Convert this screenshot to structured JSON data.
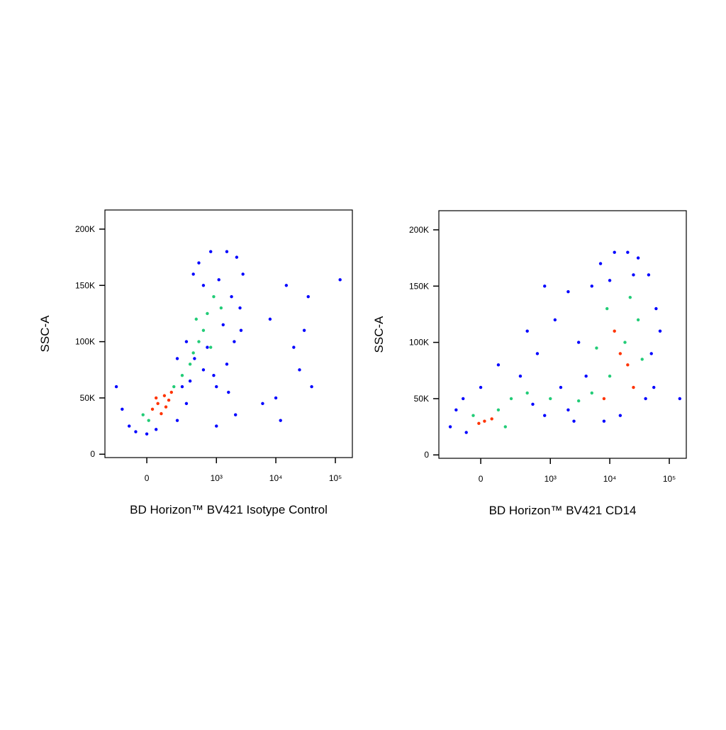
{
  "chart_data": [
    {
      "type": "scatter",
      "xlabel": "BD Horizon™ BV421 Isotype Control",
      "ylabel": "SSC-A",
      "xscale": "biexponential",
      "xlim": [
        -330,
        193000
      ],
      "ylim": [
        -3000,
        217000
      ],
      "xticks": [
        0,
        {
          "value": 1000,
          "label": "10³"
        },
        {
          "value": 10000,
          "label": "10⁴"
        },
        {
          "value": 100000,
          "label": "10⁵"
        }
      ],
      "yticks": [
        0,
        {
          "value": 50000,
          "label": "50K"
        },
        {
          "value": 100000,
          "label": "100K"
        },
        {
          "value": 150000,
          "label": "150K"
        },
        {
          "value": 200000,
          "label": "200K"
        }
      ],
      "series": [
        {
          "color": "#0000ff",
          "x": [
            -150,
            -100,
            -60,
            0,
            50,
            200,
            300,
            250,
            350,
            420,
            600,
            1000,
            1500,
            2000,
            2500,
            2800,
            2200,
            1500,
            800,
            500,
            400,
            600,
            1100,
            1800,
            2600,
            1300,
            700,
            300,
            200,
            900,
            1600,
            2100,
            1000,
            -200,
            12000,
            8000,
            20000,
            30000,
            35000,
            15000,
            120000,
            25000,
            10000,
            40000,
            6000
          ],
          "y": [
            40000,
            25000,
            20000,
            18000,
            22000,
            30000,
            45000,
            60000,
            65000,
            85000,
            75000,
            60000,
            80000,
            100000,
            130000,
            160000,
            175000,
            180000,
            180000,
            170000,
            160000,
            150000,
            155000,
            140000,
            110000,
            115000,
            95000,
            100000,
            85000,
            70000,
            55000,
            35000,
            25000,
            60000,
            30000,
            120000,
            95000,
            110000,
            140000,
            150000,
            155000,
            75000,
            50000,
            60000,
            45000
          ]
        },
        {
          "color": "#22cc77",
          "x": [
            170,
            250,
            400,
            600,
            500,
            700,
            900,
            350,
            10,
            -20,
            800,
            1200,
            450
          ],
          "y": [
            60000,
            70000,
            90000,
            110000,
            100000,
            125000,
            140000,
            80000,
            30000,
            35000,
            95000,
            130000,
            120000
          ]
        },
        {
          "color": "#ff3300",
          "x": [
            60,
            100,
            30,
            130,
            80,
            150,
            50,
            110
          ],
          "y": [
            45000,
            52000,
            40000,
            48000,
            36000,
            55000,
            50000,
            42000
          ]
        }
      ]
    },
    {
      "type": "scatter",
      "xlabel": "BD Horizon™ BV421 CD14",
      "ylabel": "SSC-A",
      "xscale": "biexponential",
      "xlim": [
        -330,
        193000
      ],
      "ylim": [
        -3000,
        217000
      ],
      "xticks": [
        0,
        {
          "value": 1000,
          "label": "10³"
        },
        {
          "value": 10000,
          "label": "10⁴"
        },
        {
          "value": 100000,
          "label": "10⁵"
        }
      ],
      "yticks": [
        0,
        {
          "value": 50000,
          "label": "50K"
        },
        {
          "value": 100000,
          "label": "100K"
        },
        {
          "value": 150000,
          "label": "150K"
        },
        {
          "value": 200000,
          "label": "200K"
        }
      ],
      "series": [
        {
          "color": "#0000ff",
          "x": [
            -200,
            -150,
            -80,
            0,
            300,
            500,
            800,
            1500,
            2000,
            2500,
            4000,
            3000,
            5000,
            7000,
            12000,
            20000,
            30000,
            45000,
            60000,
            50000,
            40000,
            55000,
            15000,
            8000,
            600,
            1200,
            2000,
            800,
            400,
            100,
            -100,
            70000,
            25000,
            10000,
            150000
          ],
          "y": [
            25000,
            40000,
            20000,
            60000,
            70000,
            45000,
            35000,
            60000,
            40000,
            30000,
            70000,
            100000,
            150000,
            170000,
            180000,
            180000,
            175000,
            160000,
            130000,
            90000,
            50000,
            60000,
            35000,
            30000,
            90000,
            120000,
            145000,
            150000,
            110000,
            80000,
            50000,
            110000,
            160000,
            155000,
            50000
          ]
        },
        {
          "color": "#22cc77",
          "x": [
            100,
            200,
            400,
            1000,
            3000,
            5000,
            10000,
            18000,
            30000,
            22000,
            9000,
            35000,
            -40,
            150,
            6000
          ],
          "y": [
            40000,
            50000,
            55000,
            50000,
            48000,
            55000,
            70000,
            100000,
            120000,
            140000,
            130000,
            85000,
            35000,
            25000,
            95000
          ]
        },
        {
          "color": "#ff3300",
          "x": [
            20,
            60,
            -10,
            15000,
            20000,
            8000,
            12000,
            25000
          ],
          "y": [
            30000,
            32000,
            28000,
            90000,
            80000,
            50000,
            110000,
            60000
          ]
        }
      ]
    }
  ]
}
